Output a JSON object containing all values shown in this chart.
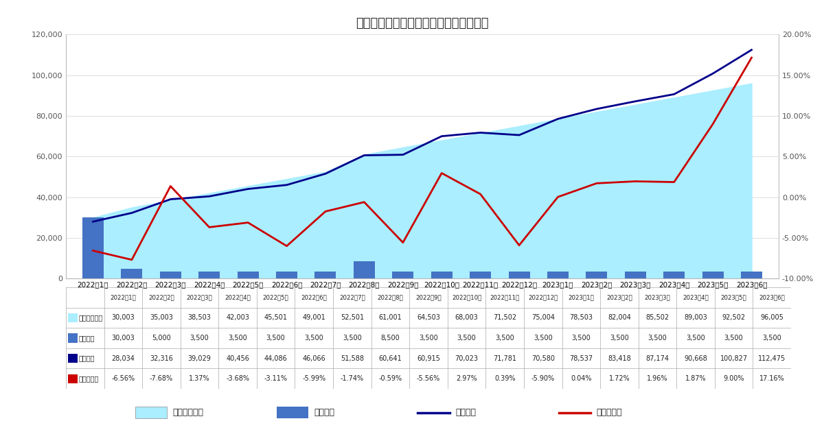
{
  "title": "わが家のひふみひふみワールド運用実績",
  "categories": [
    "2022年1月",
    "2022年2月",
    "2022年3月",
    "2022年4月",
    "2022年5月",
    "2022年6月",
    "2022年7月",
    "2022年8月",
    "2022年9月",
    "2022年10月",
    "2022年11月",
    "2022年12月",
    "2023年1月",
    "2023年2月",
    "2023年3月",
    "2023年4月",
    "2023年5月",
    "2023年6月"
  ],
  "cumulative": [
    30003,
    35003,
    38503,
    42003,
    45501,
    49001,
    52501,
    61001,
    64503,
    68003,
    71502,
    75004,
    78503,
    82004,
    85502,
    89003,
    92502,
    96005
  ],
  "monthly": [
    30003,
    5000,
    3500,
    3500,
    3500,
    3500,
    3500,
    8500,
    3500,
    3500,
    3500,
    3500,
    3500,
    3500,
    3500,
    3500,
    3500,
    3500
  ],
  "evaluation": [
    28034,
    32316,
    39029,
    40456,
    44086,
    46066,
    51588,
    60641,
    60915,
    70023,
    71781,
    70580,
    78537,
    83418,
    87174,
    90668,
    100827,
    112475
  ],
  "gain_rate": [
    -6.56,
    -7.68,
    1.37,
    -3.68,
    -3.11,
    -5.99,
    -1.74,
    -0.59,
    -5.56,
    2.97,
    0.39,
    -5.9,
    0.04,
    1.72,
    1.96,
    1.87,
    9.0,
    17.16
  ],
  "bg_color": "#ffffff",
  "area_color": "#aaeeff",
  "bar_color": "#4472c4",
  "eval_line_color": "#00008B",
  "gain_line_color": "#cc0000",
  "left_ylim": [
    0,
    120000
  ],
  "left_yticks": [
    0,
    20000,
    40000,
    60000,
    80000,
    100000,
    120000
  ],
  "right_ylim": [
    -10.0,
    20.0
  ],
  "right_yticks": [
    -10.0,
    -5.0,
    0.0,
    5.0,
    10.0,
    15.0,
    20.0
  ],
  "table_row_labels": [
    "受渡金額合計",
    "受渡金額",
    "評価金額",
    "評価損益率"
  ],
  "table_row_colors": [
    "#aaeeff",
    "#4472c4",
    "#00008B",
    "#cc0000"
  ]
}
